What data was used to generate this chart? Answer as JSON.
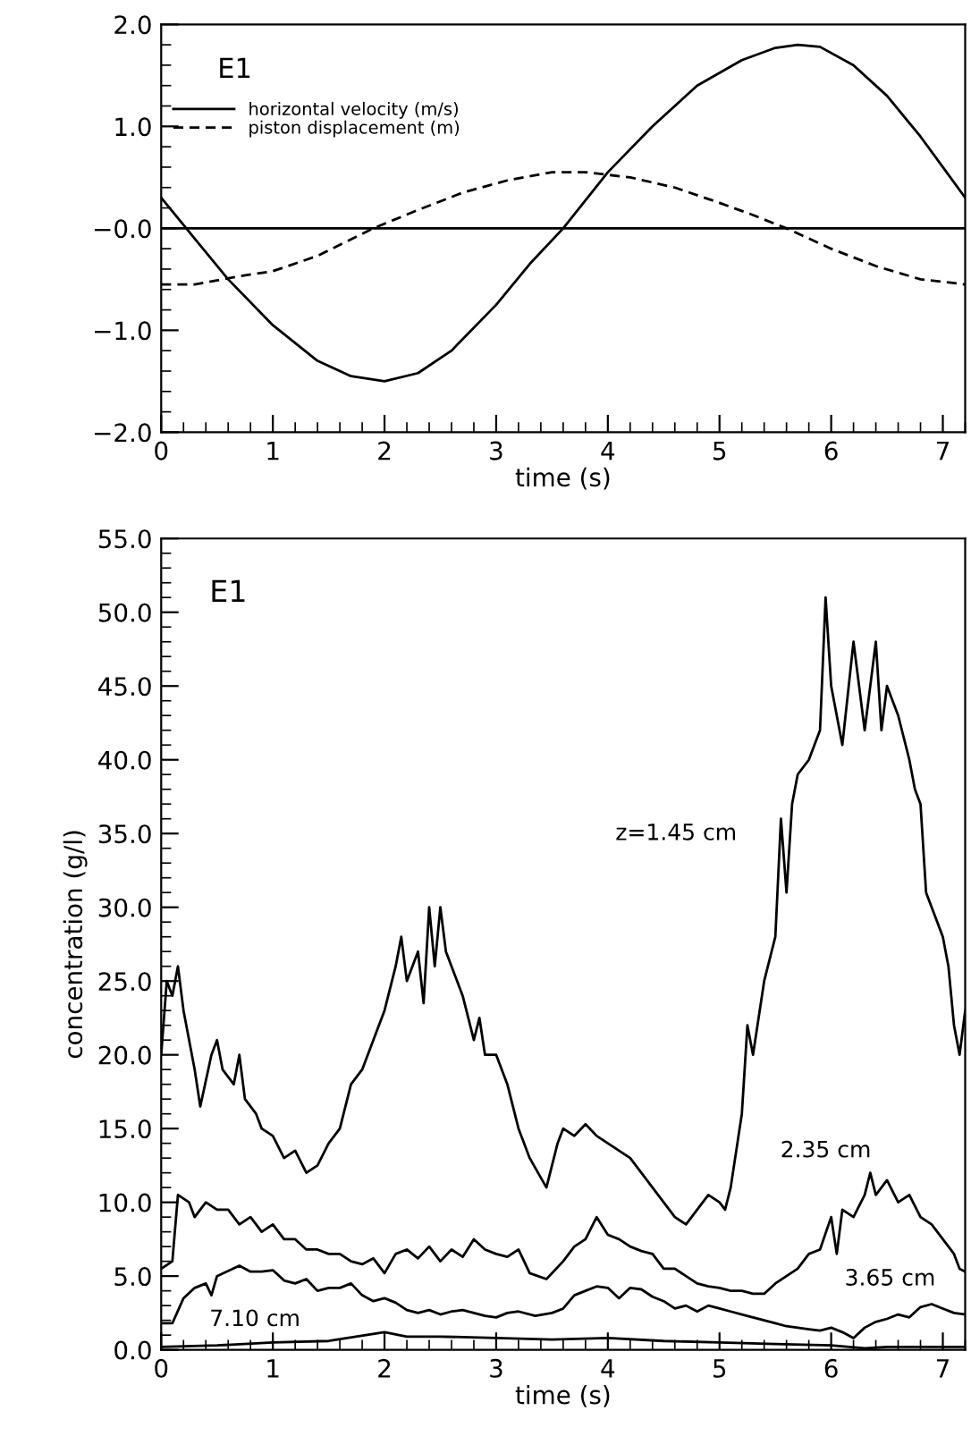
{
  "chart_data": [
    {
      "type": "line",
      "xlabel": "time (s)",
      "annotations": [
        "E1"
      ],
      "legend": "top left",
      "grid": false,
      "xlim": [
        0,
        7.2
      ],
      "xticks": [
        0,
        1,
        2,
        3,
        4,
        5,
        6,
        7
      ],
      "ylim": [
        -2.0,
        2.0
      ],
      "yticks": [
        {
          "value": 2.0,
          "label": "2.0"
        },
        {
          "value": 1.0,
          "label": "1.0"
        },
        {
          "value": 0.0,
          "label": "−0.0"
        },
        {
          "value": -1.0,
          "label": "−1.0"
        },
        {
          "value": -2.0,
          "label": "−2.0"
        }
      ],
      "ref_lines": [
        {
          "axis": "y",
          "value": 0,
          "color": "#000000"
        }
      ],
      "series": [
        {
          "name": "horizontal velocity (m/s)",
          "color": "#000000",
          "line_style": "solid",
          "x": [
            0,
            0.3,
            0.6,
            1.0,
            1.4,
            1.7,
            2.0,
            2.3,
            2.6,
            3.0,
            3.3,
            3.6,
            4.0,
            4.4,
            4.8,
            5.2,
            5.5,
            5.7,
            5.9,
            6.2,
            6.5,
            6.8,
            7.0,
            7.2
          ],
          "values": [
            0.3,
            -0.1,
            -0.5,
            -0.95,
            -1.3,
            -1.45,
            -1.5,
            -1.42,
            -1.2,
            -0.75,
            -0.35,
            0.0,
            0.55,
            1.0,
            1.4,
            1.65,
            1.77,
            1.8,
            1.78,
            1.6,
            1.3,
            0.9,
            0.6,
            0.3
          ]
        },
        {
          "name": "piston displacement (m)",
          "color": "#000000",
          "line_style": "dashed",
          "x": [
            0,
            0.3,
            0.7,
            1.0,
            1.4,
            1.9,
            2.3,
            2.7,
            3.1,
            3.5,
            3.8,
            4.2,
            4.6,
            5.0,
            5.3,
            5.6,
            6.0,
            6.4,
            6.8,
            7.2
          ],
          "values": [
            -0.55,
            -0.55,
            -0.47,
            -0.42,
            -0.27,
            0.0,
            0.18,
            0.35,
            0.47,
            0.55,
            0.55,
            0.5,
            0.4,
            0.25,
            0.13,
            0.0,
            -0.2,
            -0.37,
            -0.5,
            -0.55
          ]
        }
      ]
    },
    {
      "type": "line",
      "xlabel": "time (s)",
      "ylabel": "concentration (g/l)",
      "grid": false,
      "legend": false,
      "annotations": [
        "E1"
      ],
      "xlim": [
        0,
        7.2
      ],
      "xticks": [
        0,
        1,
        2,
        3,
        4,
        5,
        6,
        7
      ],
      "ylim": [
        0,
        55
      ],
      "yticks": [
        {
          "value": 0,
          "label": "0.0"
        },
        {
          "value": 5,
          "label": "5.0"
        },
        {
          "value": 10,
          "label": "10.0"
        },
        {
          "value": 15,
          "label": "15.0"
        },
        {
          "value": 20,
          "label": "20.0"
        },
        {
          "value": 25,
          "label": "25.0"
        },
        {
          "value": 30,
          "label": "30.0"
        },
        {
          "value": 35,
          "label": "35.0"
        },
        {
          "value": 40,
          "label": "40.0"
        },
        {
          "value": 45,
          "label": "45.0"
        },
        {
          "value": 50,
          "label": "50.0"
        },
        {
          "value": 55,
          "label": "55.0"
        }
      ],
      "series": [
        {
          "name": "z=1.45 cm",
          "color": "#000000",
          "x": [
            0,
            0.05,
            0.1,
            0.15,
            0.2,
            0.3,
            0.35,
            0.45,
            0.5,
            0.55,
            0.65,
            0.7,
            0.75,
            0.85,
            0.9,
            1.0,
            1.1,
            1.2,
            1.3,
            1.4,
            1.5,
            1.6,
            1.7,
            1.8,
            1.9,
            2.0,
            2.1,
            2.15,
            2.2,
            2.3,
            2.35,
            2.4,
            2.45,
            2.5,
            2.55,
            2.6,
            2.7,
            2.8,
            2.85,
            2.9,
            3.0,
            3.1,
            3.2,
            3.3,
            3.45,
            3.55,
            3.6,
            3.7,
            3.8,
            3.9,
            4.0,
            4.1,
            4.2,
            4.3,
            4.4,
            4.5,
            4.6,
            4.7,
            4.8,
            4.9,
            5.0,
            5.05,
            5.1,
            5.2,
            5.25,
            5.3,
            5.4,
            5.5,
            5.55,
            5.6,
            5.65,
            5.7,
            5.8,
            5.9,
            5.95,
            6.0,
            6.1,
            6.2,
            6.3,
            6.4,
            6.45,
            6.5,
            6.6,
            6.7,
            6.75,
            6.8,
            6.85,
            6.9,
            7.0,
            7.05,
            7.1,
            7.15,
            7.2
          ],
          "values": [
            20,
            25,
            24,
            26,
            23,
            19,
            16.5,
            20,
            21,
            19,
            18,
            20,
            17,
            16,
            15,
            14.5,
            13,
            13.5,
            12,
            12.5,
            14,
            15,
            18,
            19,
            21,
            23,
            26,
            28,
            25,
            27,
            23.5,
            30,
            26,
            30,
            27,
            26,
            24,
            21,
            22.5,
            20,
            20,
            18,
            15,
            13,
            11,
            14,
            15,
            14.5,
            15.3,
            14.5,
            14,
            13.5,
            13,
            12,
            11,
            10,
            9,
            8.5,
            9.5,
            10.5,
            10,
            9.5,
            11,
            16,
            22,
            20,
            25,
            28,
            36,
            31,
            37,
            39,
            40,
            42,
            51,
            45,
            41,
            48,
            42,
            48,
            42,
            45,
            43,
            40,
            38,
            37,
            31,
            30,
            28,
            26,
            22,
            20,
            23
          ]
        },
        {
          "name": "2.35 cm",
          "color": "#000000",
          "x": [
            0,
            0.1,
            0.15,
            0.25,
            0.3,
            0.4,
            0.5,
            0.6,
            0.7,
            0.8,
            0.9,
            1.0,
            1.1,
            1.2,
            1.3,
            1.4,
            1.5,
            1.6,
            1.7,
            1.8,
            1.9,
            2.0,
            2.1,
            2.2,
            2.3,
            2.4,
            2.5,
            2.6,
            2.7,
            2.8,
            2.9,
            3.0,
            3.1,
            3.2,
            3.3,
            3.45,
            3.6,
            3.7,
            3.8,
            3.9,
            4.0,
            4.1,
            4.2,
            4.3,
            4.4,
            4.5,
            4.6,
            4.7,
            4.8,
            4.9,
            5.0,
            5.1,
            5.2,
            5.3,
            5.4,
            5.5,
            5.6,
            5.7,
            5.8,
            5.9,
            6.0,
            6.05,
            6.1,
            6.2,
            6.3,
            6.35,
            6.4,
            6.5,
            6.6,
            6.7,
            6.8,
            6.9,
            7.0,
            7.1,
            7.15,
            7.2
          ],
          "values": [
            5.5,
            6,
            10.5,
            10,
            9,
            10,
            9.5,
            9.5,
            8.5,
            9,
            8,
            8.5,
            7.5,
            7.5,
            6.8,
            6.8,
            6.5,
            6.5,
            6,
            5.8,
            6.2,
            5.2,
            6.5,
            6.8,
            6.2,
            7,
            6,
            6.8,
            6.3,
            7.5,
            6.8,
            6.5,
            6.3,
            6.8,
            5.2,
            4.8,
            6,
            7,
            7.5,
            9,
            7.8,
            7.5,
            7,
            6.7,
            6.5,
            5.5,
            5.5,
            5,
            4.5,
            4.3,
            4.2,
            4,
            4,
            3.8,
            3.8,
            4.5,
            5,
            5.5,
            6.5,
            6.8,
            9,
            6.5,
            9.5,
            9,
            10.5,
            12,
            10.5,
            11.5,
            10,
            10.5,
            9,
            8.5,
            7.5,
            6.5,
            5.5,
            5.3
          ]
        },
        {
          "name": "3.65 cm",
          "color": "#000000",
          "x": [
            0,
            0.1,
            0.2,
            0.3,
            0.4,
            0.45,
            0.5,
            0.7,
            0.8,
            0.9,
            1.0,
            1.1,
            1.2,
            1.3,
            1.4,
            1.5,
            1.6,
            1.7,
            1.8,
            1.9,
            2.0,
            2.1,
            2.2,
            2.3,
            2.4,
            2.5,
            2.6,
            2.7,
            2.8,
            2.9,
            3.0,
            3.1,
            3.2,
            3.35,
            3.5,
            3.6,
            3.7,
            3.8,
            3.9,
            4.0,
            4.1,
            4.2,
            4.3,
            4.4,
            4.5,
            4.6,
            4.7,
            4.8,
            4.9,
            5.0,
            5.1,
            5.2,
            5.3,
            5.4,
            5.5,
            5.6,
            5.7,
            5.8,
            5.9,
            6.0,
            6.1,
            6.2,
            6.3,
            6.4,
            6.5,
            6.6,
            6.7,
            6.8,
            6.9,
            7.0,
            7.1,
            7.2
          ],
          "values": [
            1.8,
            1.8,
            3.5,
            4.2,
            4.5,
            3.7,
            5,
            5.7,
            5.3,
            5.3,
            5.4,
            4.7,
            4.5,
            4.8,
            4,
            4.2,
            4.2,
            4.5,
            3.7,
            3.3,
            3.5,
            3.2,
            2.7,
            2.5,
            2.7,
            2.4,
            2.6,
            2.7,
            2.5,
            2.3,
            2.2,
            2.5,
            2.6,
            2.3,
            2.5,
            2.8,
            3.7,
            4,
            4.3,
            4.2,
            3.5,
            4.2,
            4.1,
            3.6,
            3.3,
            2.8,
            3,
            2.6,
            3,
            2.8,
            2.6,
            2.4,
            2.2,
            2,
            1.8,
            1.6,
            1.5,
            1.4,
            1.3,
            1.5,
            1.2,
            0.8,
            1.5,
            1.9,
            2.1,
            2.4,
            2.2,
            2.9,
            3.1,
            2.8,
            2.5,
            2.4
          ]
        },
        {
          "name": "7.10 cm",
          "color": "#000000",
          "x": [
            0,
            0.5,
            1.0,
            1.5,
            2.0,
            2.2,
            2.5,
            3.0,
            3.5,
            4.0,
            4.5,
            5.0,
            5.5,
            6.0,
            6.3,
            6.5,
            7.0,
            7.2
          ],
          "values": [
            0.2,
            0.3,
            0.5,
            0.6,
            1.2,
            0.9,
            0.9,
            0.8,
            0.7,
            0.8,
            0.6,
            0.5,
            0.4,
            0.3,
            0.1,
            0.2,
            0.2,
            0.2
          ]
        }
      ]
    }
  ]
}
